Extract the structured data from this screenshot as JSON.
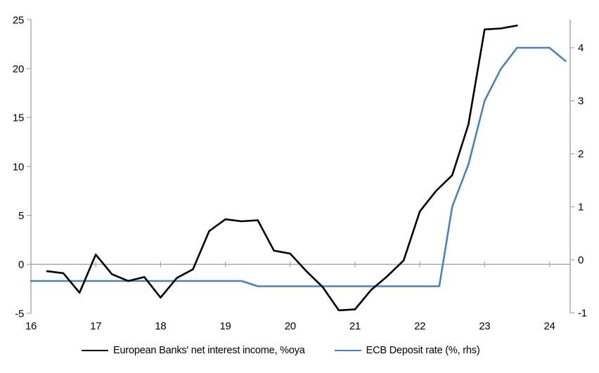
{
  "chart_data": {
    "type": "line",
    "title": "",
    "xlabel": "",
    "ylabel_left": "",
    "ylabel_right": "",
    "grid": false,
    "legend_position": "bottom",
    "axis_color": "#a6a6a6",
    "x_axis": {
      "min": 16,
      "max": 24.32,
      "tick_values": [
        16,
        17,
        18,
        19,
        20,
        21,
        22,
        23,
        24
      ],
      "tick_labels": [
        "16",
        "17",
        "18",
        "19",
        "20",
        "21",
        "22",
        "23",
        "24"
      ]
    },
    "y_axis_left": {
      "min": -5,
      "max": 25,
      "tick_values": [
        -5,
        0,
        5,
        10,
        15,
        20,
        25
      ],
      "tick_labels": [
        "-5",
        "0",
        "5",
        "10",
        "15",
        "20",
        "25"
      ],
      "zero_line": true
    },
    "y_axis_right": {
      "min": -1.01,
      "max": 4.53,
      "tick_values": [
        -1,
        0,
        1,
        2,
        3,
        4
      ],
      "tick_labels": [
        "-1",
        "0",
        "1",
        "2",
        "3",
        "4"
      ]
    },
    "series": [
      {
        "name": "European Banks' net interest income, %oya",
        "axis": "left",
        "color": "#000000",
        "points": [
          [
            16.25,
            -0.7
          ],
          [
            16.5,
            -0.9
          ],
          [
            16.75,
            -2.9
          ],
          [
            17.0,
            1.0
          ],
          [
            17.25,
            -1.0
          ],
          [
            17.5,
            -1.7
          ],
          [
            17.75,
            -1.3
          ],
          [
            18.0,
            -3.4
          ],
          [
            18.25,
            -1.4
          ],
          [
            18.5,
            -0.5
          ],
          [
            18.75,
            3.4
          ],
          [
            19.0,
            4.6
          ],
          [
            19.25,
            4.4
          ],
          [
            19.5,
            4.5
          ],
          [
            19.75,
            1.4
          ],
          [
            20.0,
            1.1
          ],
          [
            20.25,
            -0.7
          ],
          [
            20.5,
            -2.3
          ],
          [
            20.75,
            -4.7
          ],
          [
            21.0,
            -4.6
          ],
          [
            21.25,
            -2.6
          ],
          [
            21.5,
            -1.2
          ],
          [
            21.75,
            0.4
          ],
          [
            22.0,
            5.4
          ],
          [
            22.25,
            7.5
          ],
          [
            22.5,
            9.1
          ],
          [
            22.75,
            14.3
          ],
          [
            23.0,
            24.0
          ],
          [
            23.25,
            24.1
          ],
          [
            23.5,
            24.4
          ]
        ]
      },
      {
        "name": "ECB Deposit rate (%, rhs)",
        "axis": "right",
        "color": "#4e81b8",
        "points": [
          [
            16.0,
            -0.4
          ],
          [
            19.25,
            -0.4
          ],
          [
            19.5,
            -0.5
          ],
          [
            22.3,
            -0.5
          ],
          [
            22.5,
            1.0
          ],
          [
            22.75,
            1.8
          ],
          [
            23.0,
            3.0
          ],
          [
            23.25,
            3.6
          ],
          [
            23.5,
            4.0
          ],
          [
            24.0,
            4.0
          ],
          [
            24.25,
            3.75
          ]
        ]
      }
    ]
  }
}
